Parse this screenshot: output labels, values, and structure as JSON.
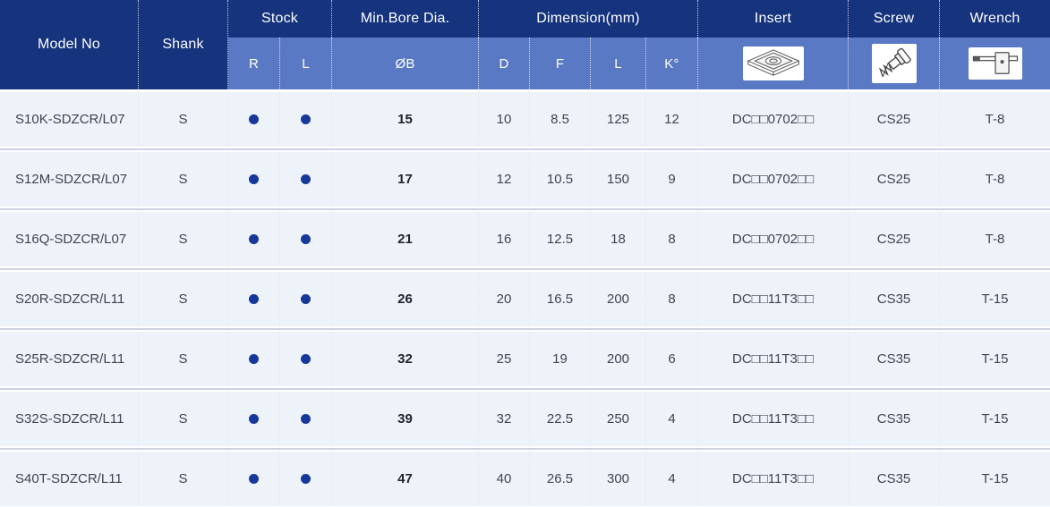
{
  "header": {
    "model_no": "Model No",
    "shank": "Shank",
    "stock": "Stock",
    "stock_r": "R",
    "stock_l": "L",
    "min_bore_dia": "Min.Bore Dia.",
    "bore_symbol": "ØB",
    "dimension": "Dimension(mm)",
    "dim_d": "D",
    "dim_f": "F",
    "dim_l": "L",
    "dim_k": "K°",
    "insert": "Insert",
    "screw": "Screw",
    "wrench": "Wrench",
    "icons": {
      "insert": "diamond-insert-icon",
      "screw": "screw-icon",
      "wrench": "torx-wrench-icon"
    }
  },
  "rows": [
    {
      "model": "S10K-SDZCR/L07",
      "shank": "S",
      "stock_r": true,
      "stock_l": true,
      "bore": "15",
      "d": "10",
      "f": "8.5",
      "l": "125",
      "k": "12",
      "insert": "DC□□0702□□",
      "screw": "CS25",
      "wrench": "T-8"
    },
    {
      "model": "S12M-SDZCR/L07",
      "shank": "S",
      "stock_r": true,
      "stock_l": true,
      "bore": "17",
      "d": "12",
      "f": "10.5",
      "l": "150",
      "k": "9",
      "insert": "DC□□0702□□",
      "screw": "CS25",
      "wrench": "T-8"
    },
    {
      "model": "S16Q-SDZCR/L07",
      "shank": "S",
      "stock_r": true,
      "stock_l": true,
      "bore": "21",
      "d": "16",
      "f": "12.5",
      "l": "18",
      "k": "8",
      "insert": "DC□□0702□□",
      "screw": "CS25",
      "wrench": "T-8"
    },
    {
      "model": "S20R-SDZCR/L11",
      "shank": "S",
      "stock_r": true,
      "stock_l": true,
      "bore": "26",
      "d": "20",
      "f": "16.5",
      "l": "200",
      "k": "8",
      "insert": "DC□□11T3□□",
      "screw": "CS35",
      "wrench": "T-15"
    },
    {
      "model": "S25R-SDZCR/L11",
      "shank": "S",
      "stock_r": true,
      "stock_l": true,
      "bore": "32",
      "d": "25",
      "f": "19",
      "l": "200",
      "k": "6",
      "insert": "DC□□11T3□□",
      "screw": "CS35",
      "wrench": "T-15"
    },
    {
      "model": "S32S-SDZCR/L11",
      "shank": "S",
      "stock_r": true,
      "stock_l": true,
      "bore": "39",
      "d": "32",
      "f": "22.5",
      "l": "250",
      "k": "4",
      "insert": "DC□□11T3□□",
      "screw": "CS35",
      "wrench": "T-15"
    },
    {
      "model": "S40T-SDZCR/L11",
      "shank": "S",
      "stock_r": true,
      "stock_l": true,
      "bore": "47",
      "d": "40",
      "f": "26.5",
      "l": "300",
      "k": "4",
      "insert": "DC□□11T3□□",
      "screw": "CS35",
      "wrench": "T-15"
    }
  ],
  "colors": {
    "header_dark": "#16337e",
    "header_mid": "#5a79c4",
    "row_bg": "#eef2f9",
    "row_divider": "#ccd2df",
    "stock_dot": "#17389b",
    "body_text": "#3f4450",
    "bore_text": "#20242c"
  }
}
